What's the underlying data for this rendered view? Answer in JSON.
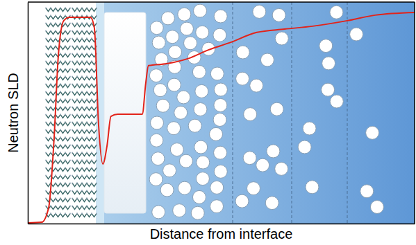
{
  "chart_data": {
    "type": "line",
    "x_label": "Distance from interface",
    "y_label": "Neutron SLD",
    "xlim": [
      0,
      100
    ],
    "ylim": [
      0,
      100
    ],
    "tick_labels": false,
    "series": [
      {
        "color": "#e2231a",
        "line_style": "solid",
        "x": [
          0,
          3.6,
          5.4,
          6.8,
          7.9,
          9.3,
          10.8,
          16.2,
          17.2,
          18.3,
          19.4,
          20.5,
          21.5,
          23.3,
          29.6,
          30.5,
          31.2,
          35.9,
          41.3,
          46.7,
          52.1,
          59.2,
          66.4,
          73.6,
          82.6,
          89.8,
          100
        ],
        "values": [
          0.3,
          0.6,
          7.2,
          38.4,
          75.9,
          91.6,
          93.1,
          93.1,
          88.4,
          44.7,
          26.9,
          35.3,
          48.4,
          49.4,
          49.4,
          63.4,
          71.3,
          72.2,
          74.4,
          78.4,
          81.6,
          86.3,
          87.8,
          89.1,
          91.6,
          94.1,
          95.3
        ]
      }
    ]
  }
}
